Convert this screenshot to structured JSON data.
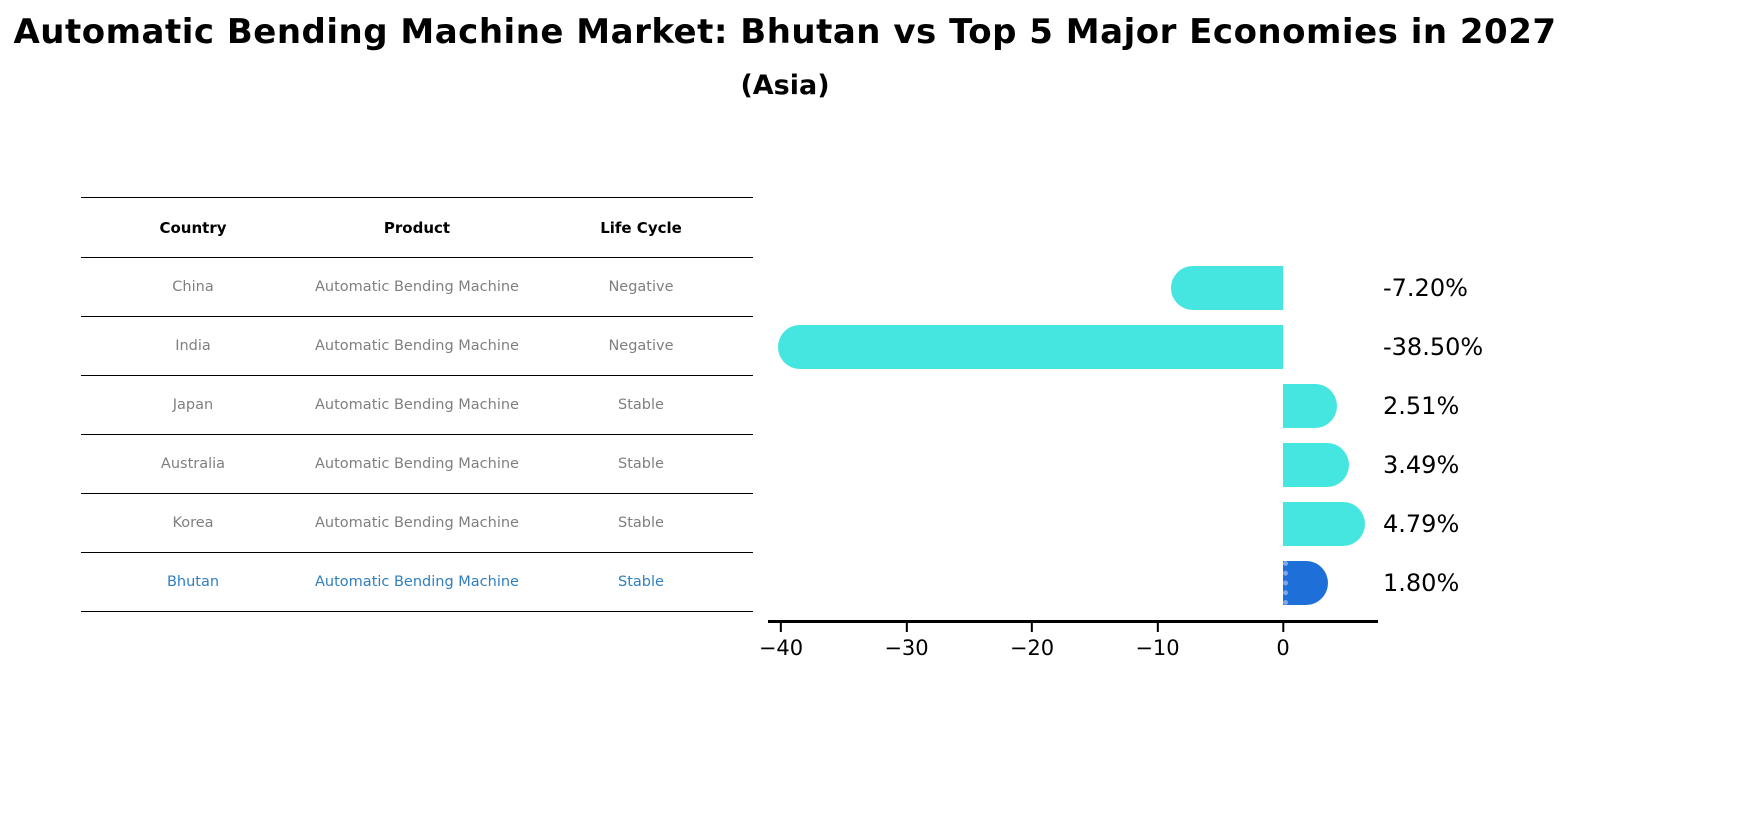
{
  "title": "Automatic Bending Machine Market: Bhutan vs Top 5 Major Economies in 2027",
  "subtitle": "(Asia)",
  "table": {
    "headers": [
      "Country",
      "Product",
      "Life Cycle"
    ],
    "rows": [
      {
        "country": "China",
        "product": "Automatic Bending Machine",
        "life_cycle": "Negative",
        "highlight": false
      },
      {
        "country": "India",
        "product": "Automatic Bending Machine",
        "life_cycle": "Negative",
        "highlight": false
      },
      {
        "country": "Japan",
        "product": "Automatic Bending Machine",
        "life_cycle": "Stable",
        "highlight": false
      },
      {
        "country": "Australia",
        "product": "Automatic Bending Machine",
        "life_cycle": "Stable",
        "highlight": false
      },
      {
        "country": "Korea",
        "product": "Automatic Bending Machine",
        "life_cycle": "Stable",
        "highlight": false
      },
      {
        "country": "Bhutan",
        "product": "Automatic Bending Machine",
        "life_cycle": "Stable",
        "highlight": true
      }
    ]
  },
  "chart_data": {
    "type": "bar",
    "orientation": "horizontal",
    "title": "Automatic Bending Machine Market: Bhutan vs Top 5 Major Economies in 2027 (Asia)",
    "categories": [
      "China",
      "India",
      "Japan",
      "Australia",
      "Korea",
      "Bhutan"
    ],
    "values": [
      -7.2,
      -38.5,
      2.51,
      3.49,
      4.79,
      1.8
    ],
    "value_labels": [
      "-7.20%",
      "-38.50%",
      "2.51%",
      "3.49%",
      "4.79%",
      "1.80%"
    ],
    "unit": "%",
    "xlim": [
      -41,
      7.5
    ],
    "x_ticks": [
      -40,
      -30,
      -20,
      -10,
      0
    ],
    "x_tick_labels": [
      "−40",
      "−30",
      "−20",
      "−10",
      "0"
    ],
    "bar_color": "#45E6E0",
    "highlight_color": "#1f6fd8",
    "highlight_index": 5,
    "grid": false,
    "legend": "none"
  }
}
